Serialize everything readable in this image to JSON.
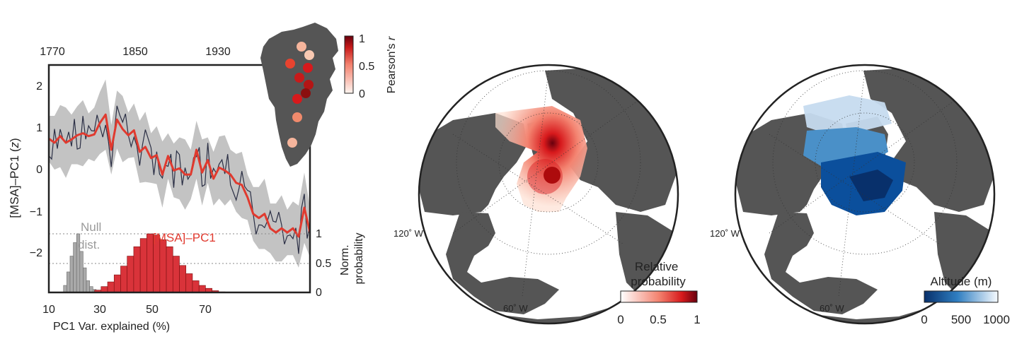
{
  "panel_a": {
    "top_axis_ticks": [
      "1770",
      "1850",
      "1930"
    ],
    "y_ticks": [
      "2",
      "1",
      "0",
      "−1",
      "−2"
    ],
    "ylabel": "[MSA]–PC1 (",
    "ylabel_italic": "z",
    "ylabel_close": ")",
    "x_ticks": [
      "10",
      "30",
      "50",
      "70"
    ],
    "xlabel": "PC1 Var. explained (%)",
    "right_ticks": [
      "1",
      "0.5",
      "0"
    ],
    "right_label_line1": "Norm.",
    "right_label_line2": "probability",
    "null_label_line1": "Null",
    "null_label_line2": "dist.",
    "msa_label": "[MSA]–PC1",
    "inset_cbar_ticks": [
      "1",
      "0.5",
      "0"
    ],
    "inset_cbar_label": "Pearson's ",
    "inset_cbar_label_italic": "r"
  },
  "panel_b": {
    "lon_label_120": "120˚ W",
    "lon_label_60": "60˚ W",
    "cbar_title_line1": "Relative",
    "cbar_title_line2": "probability",
    "cbar_ticks": [
      "0",
      "0.5",
      "1"
    ]
  },
  "panel_c": {
    "lon_label_120": "120˚ W",
    "lon_label_60": "60˚ W",
    "cbar_title": "Altitude (m)",
    "cbar_ticks": [
      "0",
      "500",
      "1000"
    ]
  },
  "colors": {
    "red": "#e03a2f",
    "gray_band": "#bdbdbd",
    "land": "#555555",
    "blue_dark": "#0b3d91",
    "null_bar": "#a9a9a9"
  },
  "chart_data": [
    {
      "type": "line",
      "xlabel": "",
      "x_range": [
        1770,
        2000
      ],
      "x_ticks": [
        1770,
        1850,
        1930
      ],
      "ylim": [
        -2.9,
        2.6
      ],
      "series": [
        {
          "x": [
            1770,
            1775,
            1780,
            1785,
            1790,
            1795,
            1800,
            1805,
            1810,
            1815,
            1820,
            1825,
            1830,
            1835,
            1840,
            1845,
            1850,
            1855,
            1860,
            1865,
            1870,
            1875,
            1880,
            1885,
            1890,
            1895,
            1900,
            1905,
            1910,
            1915,
            1920,
            1925,
            1930,
            1935,
            1940,
            1945,
            1950,
            1955,
            1960,
            1965,
            1970,
            1975,
            1980,
            1985,
            1990,
            1995,
            2000
          ],
          "values": [
            0.82,
            0.72,
            0.88,
            0.72,
            0.8,
            0.9,
            0.95,
            0.88,
            0.92,
            1.2,
            1.4,
            0.55,
            1.28,
            1.05,
            0.9,
            1.02,
            0.5,
            0.62,
            0.35,
            0.42,
            -0.05,
            0.4,
            0.05,
            0.1,
            -0.05,
            -0.05,
            0.55,
            0.0,
            0.3,
            -0.15,
            0.12,
            0.05,
            -0.05,
            -0.25,
            -0.3,
            -0.6,
            -1.0,
            -1.1,
            -1.0,
            -1.35,
            -1.45,
            -1.35,
            -1.45,
            -1.35,
            -1.55,
            -0.85,
            -1.45
          ]
        }
      ],
      "band": {
        "half_width": 0.55,
        "color": "gray"
      }
    },
    {
      "type": "bar",
      "xlabel": "PC1 Var. explained (%)",
      "x_range": [
        10,
        90
      ],
      "x_ticks": [
        10,
        30,
        50,
        70
      ],
      "ylim": [
        0,
        1
      ],
      "series": [
        {
          "name": "Null dist.",
          "x": [
            15,
            16,
            17,
            18,
            19,
            20,
            21,
            22,
            23,
            24
          ],
          "values": [
            0.12,
            0.35,
            0.62,
            0.85,
            1.0,
            0.7,
            0.42,
            0.2,
            0.1,
            0.05
          ]
        },
        {
          "name": "[MSA]–PC1",
          "x": [
            25,
            27,
            29,
            31,
            33,
            35,
            37,
            39,
            41,
            43,
            45,
            47,
            49,
            51,
            53,
            55,
            57,
            59,
            61,
            63
          ],
          "values": [
            0.04,
            0.1,
            0.18,
            0.3,
            0.45,
            0.62,
            0.78,
            0.92,
            1.0,
            0.98,
            0.9,
            0.78,
            0.62,
            0.46,
            0.32,
            0.2,
            0.12,
            0.07,
            0.03,
            0.01
          ]
        }
      ]
    }
  ]
}
